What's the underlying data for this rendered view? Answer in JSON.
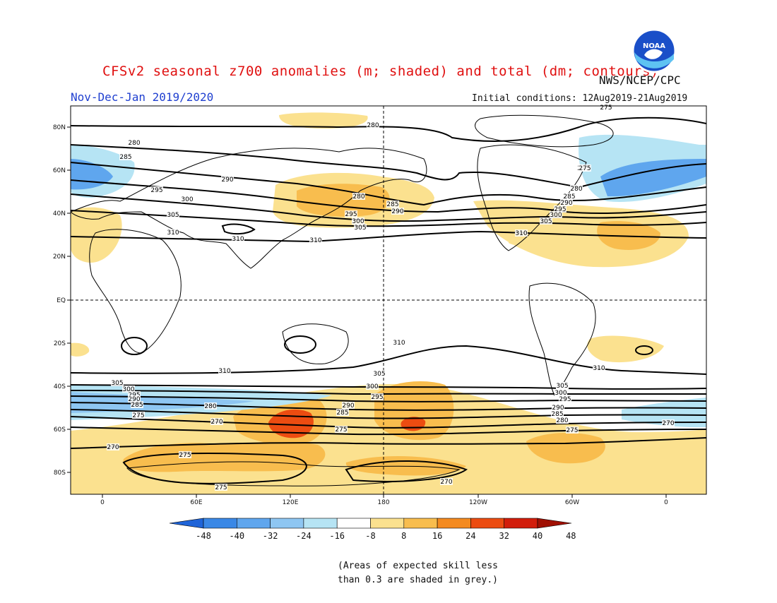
{
  "header": {
    "title": "CFSv2 seasonal z700 anomalies (m; shaded) and total (dm; contours)",
    "season": "Nov-Dec-Jan 2019/2020",
    "initial_conditions": "Initial conditions: 12Aug2019-21Aug2019",
    "organization": "NWS/NCEP/CPC",
    "logo_text": "NOAA"
  },
  "map": {
    "lat_labels": [
      "80N",
      "60N",
      "40N",
      "20N",
      "EQ",
      "20S",
      "40S",
      "60S",
      "80S"
    ],
    "lon_labels": [
      "0",
      "60E",
      "120E",
      "180",
      "120W",
      "60W",
      "0"
    ],
    "contour_labels": [
      {
        "text": "280",
        "key": "c1"
      },
      {
        "text": "275",
        "key": "c2"
      },
      {
        "text": "280",
        "key": "c3"
      },
      {
        "text": "285",
        "key": "c4"
      },
      {
        "text": "290",
        "key": "c5"
      },
      {
        "text": "295",
        "key": "c6"
      },
      {
        "text": "300",
        "key": "c7"
      },
      {
        "text": "305",
        "key": "c8"
      },
      {
        "text": "310",
        "key": "c9"
      },
      {
        "text": "310",
        "key": "c10"
      },
      {
        "text": "310",
        "key": "c11"
      },
      {
        "text": "280",
        "key": "c12"
      },
      {
        "text": "285",
        "key": "c13"
      },
      {
        "text": "290",
        "key": "c14"
      },
      {
        "text": "295",
        "key": "c15"
      },
      {
        "text": "300",
        "key": "c16"
      },
      {
        "text": "305",
        "key": "c17"
      },
      {
        "text": "275",
        "key": "c18"
      },
      {
        "text": "280",
        "key": "c19"
      },
      {
        "text": "285",
        "key": "c20"
      },
      {
        "text": "290",
        "key": "c21"
      },
      {
        "text": "295",
        "key": "c22"
      },
      {
        "text": "300",
        "key": "c23"
      },
      {
        "text": "305",
        "key": "c24"
      },
      {
        "text": "310",
        "key": "c25"
      },
      {
        "text": "310",
        "key": "c26"
      },
      {
        "text": "310",
        "key": "c27"
      },
      {
        "text": "305",
        "key": "c28"
      },
      {
        "text": "300",
        "key": "c29"
      },
      {
        "text": "295",
        "key": "c30"
      },
      {
        "text": "290",
        "key": "c31"
      },
      {
        "text": "285",
        "key": "c32"
      },
      {
        "text": "275",
        "key": "c33"
      },
      {
        "text": "270",
        "key": "c34"
      },
      {
        "text": "280",
        "key": "c35"
      },
      {
        "text": "270",
        "key": "c36"
      },
      {
        "text": "275",
        "key": "c37"
      },
      {
        "text": "275",
        "key": "c38"
      },
      {
        "text": "270",
        "key": "c39"
      },
      {
        "text": "305",
        "key": "c40"
      },
      {
        "text": "300",
        "key": "c41"
      },
      {
        "text": "295",
        "key": "c42"
      },
      {
        "text": "290",
        "key": "c43"
      },
      {
        "text": "285",
        "key": "c44"
      },
      {
        "text": "280",
        "key": "c45"
      },
      {
        "text": "275",
        "key": "c46"
      },
      {
        "text": "270",
        "key": "c47"
      },
      {
        "text": "305",
        "key": "c48"
      },
      {
        "text": "300",
        "key": "c49"
      },
      {
        "text": "295",
        "key": "c50"
      },
      {
        "text": "290",
        "key": "c51"
      },
      {
        "text": "285",
        "key": "c52"
      },
      {
        "text": "280",
        "key": "c53"
      },
      {
        "text": "275",
        "key": "c54"
      },
      {
        "text": "275",
        "key": "c55"
      },
      {
        "text": "310",
        "key": "c56"
      },
      {
        "text": "305",
        "key": "c57"
      },
      {
        "text": "300",
        "key": "c58"
      },
      {
        "text": "295",
        "key": "c59"
      },
      {
        "text": "290",
        "key": "c60"
      },
      {
        "text": "285",
        "key": "c61"
      },
      {
        "text": "280",
        "key": "c62"
      }
    ]
  },
  "colorbar": {
    "tick_labels": [
      "-48",
      "-40",
      "-32",
      "-24",
      "-16",
      "-8",
      "8",
      "16",
      "24",
      "32",
      "40",
      "48"
    ],
    "colors": [
      "#1f64d8",
      "#3a88e6",
      "#5fa6ee",
      "#8ec6f2",
      "#b6e4f4",
      "#ffffff",
      "#fbe18f",
      "#f8bd4e",
      "#f48a1f",
      "#ec4c11",
      "#d21d0b",
      "#a01003"
    ]
  },
  "footnote": {
    "line1": "(Areas of expected skill less",
    "line2": "than 0.3 are shaded in grey.)"
  }
}
